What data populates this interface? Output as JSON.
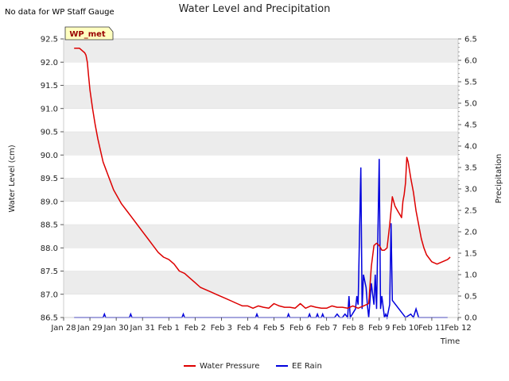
{
  "note": "No data for WP Staff Gauge",
  "chart_data": {
    "type": "line",
    "title": "Water Level and Precipitation",
    "xlabel": "Time",
    "ylabel": "Water Level (cm)",
    "y2label": "Precipitation",
    "station_label": "WP_met",
    "x_ticks": [
      "Jan 28",
      "Jan 29",
      "Jan 30",
      "Jan 31",
      "Feb 1",
      "Feb 2",
      "Feb 3",
      "Feb 4",
      "Feb 5",
      "Feb 6",
      "Feb 7",
      "Feb 8",
      "Feb 9",
      "Feb 10",
      "Feb 11",
      "Feb 12"
    ],
    "xlim": [
      0,
      15
    ],
    "ylim": [
      86.5,
      92.5
    ],
    "y_ticks": [
      "86.5",
      "87.0",
      "87.5",
      "88.0",
      "88.5",
      "89.0",
      "89.5",
      "90.0",
      "90.5",
      "91.0",
      "91.5",
      "92.0",
      "92.5"
    ],
    "y2lim": [
      0,
      6.5
    ],
    "y2_ticks": [
      "0.0",
      "0.5",
      "1.0",
      "1.5",
      "2.0",
      "2.5",
      "3.0",
      "3.5",
      "4.0",
      "4.5",
      "5.0",
      "5.5",
      "6.0",
      "6.5"
    ],
    "grid": "horizontal bands",
    "legend_position": "bottom",
    "series": [
      {
        "name": "Water Pressure",
        "color": "#dd0000",
        "axis": "left",
        "x": [
          0.4,
          0.6,
          0.7,
          0.8,
          0.85,
          0.9,
          0.95,
          1.0,
          1.1,
          1.2,
          1.3,
          1.4,
          1.5,
          1.6,
          1.7,
          1.8,
          1.9,
          2.0,
          2.2,
          2.4,
          2.6,
          2.8,
          3.0,
          3.2,
          3.4,
          3.6,
          3.8,
          4.0,
          4.2,
          4.4,
          4.6,
          4.8,
          5.0,
          5.2,
          5.4,
          5.6,
          5.8,
          6.0,
          6.2,
          6.4,
          6.6,
          6.8,
          7.0,
          7.2,
          7.4,
          7.6,
          7.8,
          8.0,
          8.2,
          8.4,
          8.6,
          8.8,
          9.0,
          9.2,
          9.4,
          9.6,
          9.8,
          10.0,
          10.2,
          10.4,
          10.6,
          10.8,
          11.0,
          11.2,
          11.4,
          11.6,
          11.7,
          11.8,
          11.9,
          12.0,
          12.05,
          12.1,
          12.2,
          12.3,
          12.4,
          12.5,
          12.6,
          12.7,
          12.8,
          12.85,
          12.9,
          12.95,
          13.0,
          13.05,
          13.1,
          13.2,
          13.3,
          13.4,
          13.5,
          13.6,
          13.7,
          13.8,
          14.0,
          14.2,
          14.4,
          14.6,
          14.7
        ],
        "y": [
          92.3,
          92.3,
          92.25,
          92.2,
          92.15,
          92.0,
          91.7,
          91.4,
          91.0,
          90.65,
          90.35,
          90.1,
          89.85,
          89.7,
          89.55,
          89.4,
          89.25,
          89.15,
          88.95,
          88.8,
          88.65,
          88.5,
          88.35,
          88.2,
          88.05,
          87.9,
          87.8,
          87.75,
          87.65,
          87.5,
          87.45,
          87.35,
          87.25,
          87.15,
          87.1,
          87.05,
          87.0,
          86.95,
          86.9,
          86.85,
          86.8,
          86.75,
          86.75,
          86.7,
          86.75,
          86.72,
          86.7,
          86.8,
          86.75,
          86.72,
          86.72,
          86.7,
          86.8,
          86.7,
          86.75,
          86.72,
          86.7,
          86.7,
          86.75,
          86.72,
          86.72,
          86.7,
          86.75,
          86.7,
          86.75,
          86.8,
          87.6,
          88.05,
          88.1,
          88.05,
          88.0,
          87.95,
          87.95,
          88.0,
          88.5,
          89.1,
          88.9,
          88.8,
          88.7,
          88.65,
          89.0,
          89.15,
          89.4,
          89.95,
          89.85,
          89.5,
          89.2,
          88.8,
          88.5,
          88.2,
          88.0,
          87.85,
          87.7,
          87.65,
          87.7,
          87.75,
          87.8
        ]
      },
      {
        "name": "EE Rain",
        "color": "#0000dd",
        "axis": "right",
        "x": [
          0.4,
          1.5,
          1.55,
          1.6,
          2.5,
          2.55,
          2.6,
          4.5,
          4.55,
          4.6,
          7.3,
          7.35,
          7.4,
          8.5,
          8.55,
          8.6,
          9.3,
          9.35,
          9.4,
          9.6,
          9.65,
          9.7,
          9.8,
          9.85,
          9.9,
          10.0,
          10.3,
          10.4,
          10.5,
          10.6,
          10.7,
          10.8,
          10.85,
          10.9,
          11.1,
          11.15,
          11.2,
          11.3,
          11.35,
          11.4,
          11.5,
          11.55,
          11.6,
          11.7,
          11.8,
          11.85,
          11.9,
          12.0,
          12.05,
          12.1,
          12.2,
          12.25,
          12.3,
          12.4,
          12.45,
          12.5,
          13.0,
          13.2,
          13.3,
          13.4,
          13.5,
          13.8,
          14.0,
          14.2,
          14.6
        ],
        "y": [
          0,
          0,
          0.08,
          0,
          0,
          0.08,
          0,
          0,
          0.08,
          0,
          0,
          0.08,
          0,
          0,
          0.08,
          0,
          0,
          0.08,
          0,
          0,
          0.08,
          0,
          0,
          0.08,
          0,
          0,
          0,
          0.08,
          0,
          0,
          0.08,
          0,
          0.5,
          0,
          0.2,
          0.5,
          0.3,
          3.5,
          0.2,
          1.0,
          0.7,
          0.3,
          0,
          0.8,
          0.3,
          1.0,
          0.2,
          3.7,
          0.2,
          0.5,
          0,
          0.08,
          0,
          0.3,
          2.2,
          0.4,
          0,
          0.08,
          0,
          0.2,
          0,
          0,
          0,
          0,
          0
        ]
      }
    ]
  }
}
